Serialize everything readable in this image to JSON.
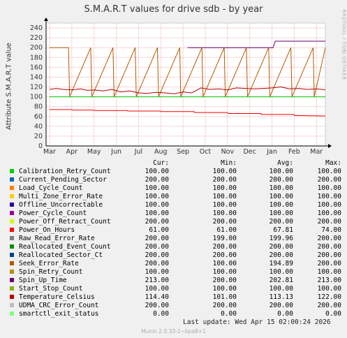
{
  "title": "S.M.A.R.T values for drive sdb - by year",
  "side_label": "RRDTOOL / TOBI OETIKER",
  "footer": {
    "last_update": "Last update:  Wed Apr 15 02:00:24 2026",
    "version": "Munin 2.0.33-1~bpo8+1"
  },
  "legend_headers": {
    "cur": "Cur:",
    "min": "Min:",
    "avg": "Avg:",
    "max": "Max:"
  },
  "legend": [
    {
      "name": "Calibration_Retry_Count",
      "color": "#00cc00",
      "cur": "100.00",
      "min": "100.00",
      "avg": "100.00",
      "max": "100.00"
    },
    {
      "name": "Current_Pending_Sector",
      "color": "#0066b3",
      "cur": "200.00",
      "min": "200.00",
      "avg": "200.00",
      "max": "200.00"
    },
    {
      "name": "Load_Cycle_Count",
      "color": "#ff8000",
      "cur": "100.00",
      "min": "100.00",
      "avg": "100.00",
      "max": "100.00"
    },
    {
      "name": "Multi_Zone_Error_Rate",
      "color": "#ffcc00",
      "cur": "100.00",
      "min": "100.00",
      "avg": "100.00",
      "max": "100.00"
    },
    {
      "name": "Offline_Uncorrectable",
      "color": "#330099",
      "cur": "100.00",
      "min": "100.00",
      "avg": "100.00",
      "max": "100.00"
    },
    {
      "name": "Power_Cycle_Count",
      "color": "#990099",
      "cur": "100.00",
      "min": "100.00",
      "avg": "100.00",
      "max": "100.00"
    },
    {
      "name": "Power_Off_Retract_Count",
      "color": "#ccff00",
      "cur": "200.00",
      "min": "200.00",
      "avg": "200.00",
      "max": "200.00"
    },
    {
      "name": "Power_On_Hours",
      "color": "#ff0000",
      "cur": "61.00",
      "min": "61.00",
      "avg": "67.81",
      "max": "74.00"
    },
    {
      "name": "Raw_Read_Error_Rate",
      "color": "#808080",
      "cur": "200.00",
      "min": "199.00",
      "avg": "199.96",
      "max": "200.00"
    },
    {
      "name": "Reallocated_Event_Count",
      "color": "#008f00",
      "cur": "200.00",
      "min": "200.00",
      "avg": "200.00",
      "max": "200.00"
    },
    {
      "name": "Reallocated_Sector_Ct",
      "color": "#00487d",
      "cur": "200.00",
      "min": "200.00",
      "avg": "200.00",
      "max": "200.00"
    },
    {
      "name": "Seek_Error_Rate",
      "color": "#b35a00",
      "cur": "200.00",
      "min": "100.00",
      "avg": "194.89",
      "max": "200.00"
    },
    {
      "name": "Spin_Retry_Count",
      "color": "#b38f00",
      "cur": "100.00",
      "min": "100.00",
      "avg": "100.00",
      "max": "100.00"
    },
    {
      "name": "Spin_Up_Time",
      "color": "#6b006b",
      "cur": "213.00",
      "min": "200.00",
      "avg": "202.81",
      "max": "213.00"
    },
    {
      "name": "Start_Stop_Count",
      "color": "#8fb300",
      "cur": "100.00",
      "min": "100.00",
      "avg": "100.00",
      "max": "100.00"
    },
    {
      "name": "Temperature_Celsius",
      "color": "#b30000",
      "cur": "114.40",
      "min": "101.00",
      "avg": "113.13",
      "max": "122.00"
    },
    {
      "name": "UDMA_CRC_Error_Count",
      "color": "#bebebe",
      "cur": "200.00",
      "min": "200.00",
      "avg": "200.00",
      "max": "200.00"
    },
    {
      "name": "smartctl_exit_status",
      "color": "#80ff80",
      "cur": "0.00",
      "min": "0.00",
      "avg": "0.00",
      "max": "0.00"
    }
  ],
  "chart_data": {
    "type": "line",
    "title": "S.M.A.R.T values for drive sdb - by year",
    "ylabel": "Attribute S.M.A.R.T value",
    "xlabel": "",
    "ylim": [
      0,
      250
    ],
    "yticks": [
      0,
      20,
      40,
      60,
      80,
      100,
      120,
      140,
      160,
      180,
      200,
      220,
      240
    ],
    "xticks": [
      "Mar",
      "Apr",
      "May",
      "Jun",
      "Jul",
      "Aug",
      "Sep",
      "Oct",
      "Nov",
      "Dec",
      "Jan",
      "Feb",
      "Mar"
    ],
    "grid": true,
    "series": [
      {
        "name": "Seek_Error_Rate",
        "color": "#b35a00",
        "x": [
          0,
          0.85,
          0.9,
          1.85,
          1.9,
          2.85,
          2.9,
          3.85,
          3.9,
          4.85,
          4.9,
          5.85,
          5.9,
          6.85,
          6.9,
          7.85,
          7.9,
          8.85,
          8.9,
          9.85,
          9.9,
          10.85,
          10.9,
          11.85,
          11.9,
          12.4
        ],
        "values": [
          200,
          200,
          100,
          200,
          100,
          200,
          100,
          200,
          100,
          200,
          100,
          200,
          100,
          200,
          100,
          200,
          100,
          200,
          100,
          200,
          100,
          200,
          100,
          200,
          100,
          200
        ]
      },
      {
        "name": "Temperature_Celsius",
        "color": "#b30000",
        "x": [
          0,
          0.3,
          0.6,
          1.0,
          1.4,
          1.7,
          2.0,
          2.4,
          2.8,
          3.2,
          3.6,
          4.0,
          4.4,
          4.8,
          5.2,
          5.6,
          6.0,
          6.4,
          6.8,
          7.2,
          7.6,
          8.0,
          8.4,
          8.8,
          9.2,
          9.6,
          10.0,
          10.4,
          10.8,
          11.2,
          11.6,
          12.0,
          12.4
        ],
        "values": [
          115,
          117,
          115,
          114,
          116,
          113,
          114,
          112,
          115,
          110,
          112,
          108,
          107,
          109,
          108,
          106,
          110,
          108,
          118,
          115,
          116,
          114,
          118,
          117,
          116,
          117,
          118,
          120,
          116,
          117,
          115,
          116,
          114.4
        ]
      },
      {
        "name": "Power_On_Hours",
        "color": "#ff0000",
        "x": [
          0,
          1.0,
          1.01,
          2.0,
          2.01,
          3.5,
          3.51,
          5.0,
          5.01,
          6.5,
          6.51,
          8.0,
          8.01,
          9.5,
          9.51,
          11.0,
          11.01,
          12.4
        ],
        "values": [
          74,
          74,
          73,
          73,
          72,
          72,
          71,
          71,
          70,
          70,
          68,
          68,
          66,
          66,
          64,
          64,
          62,
          61
        ]
      },
      {
        "name": "Spin_Up_Time",
        "color": "#6b006b",
        "x": [
          6.2,
          6.65,
          10.05,
          10.15,
          12.4
        ],
        "values": [
          200,
          200,
          200,
          213,
          213
        ]
      },
      {
        "name": "Calibration_Retry_Count",
        "color": "#00cc00",
        "x": [
          0,
          12.4
        ],
        "values": [
          100,
          100
        ]
      },
      {
        "name": "smartctl_exit_status",
        "color": "#80ff80",
        "x": [
          0,
          12.4
        ],
        "values": [
          0,
          0
        ]
      }
    ]
  }
}
